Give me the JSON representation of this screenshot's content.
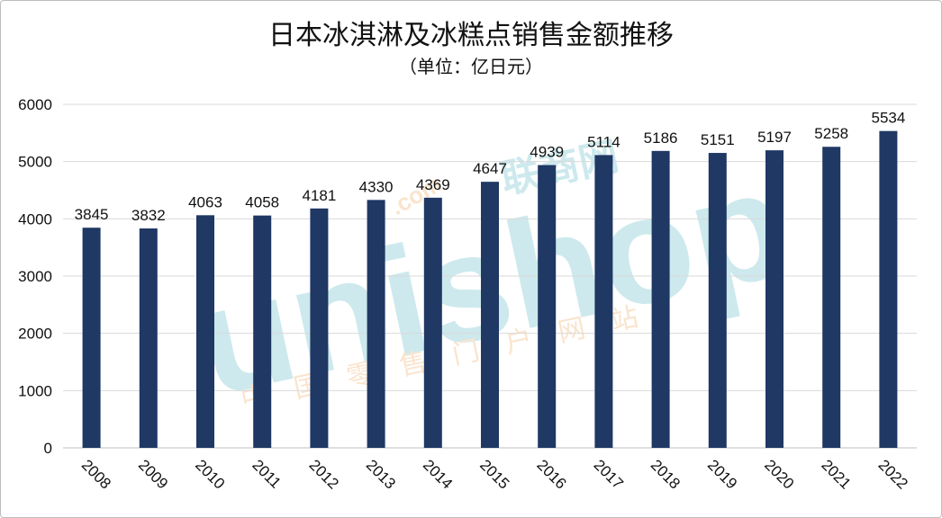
{
  "watermark": {
    "brand": "unishop",
    "cn": "联商网",
    "dotcom": ".com",
    "tagline": "中国零售门户网站"
  },
  "chart_data": {
    "type": "bar",
    "title": "日本冰淇淋及冰糕点销售金额推移",
    "subtitle": "（单位：亿日元）",
    "xlabel": "",
    "ylabel": "",
    "categories": [
      "2008",
      "2009",
      "2010",
      "2011",
      "2012",
      "2013",
      "2014",
      "2015",
      "2016",
      "2017",
      "2018",
      "2019",
      "2020",
      "2021",
      "2022"
    ],
    "values": [
      3845,
      3832,
      4063,
      4058,
      4181,
      4330,
      4369,
      4647,
      4939,
      5114,
      5186,
      5151,
      5197,
      5258,
      5534
    ],
    "ylim": [
      0,
      6000
    ],
    "yticks": [
      0,
      1000,
      2000,
      3000,
      4000,
      5000,
      6000
    ],
    "grid": true,
    "legend": "none",
    "bar_color": "#1f3864",
    "grid_color": "#d9d9d9"
  }
}
